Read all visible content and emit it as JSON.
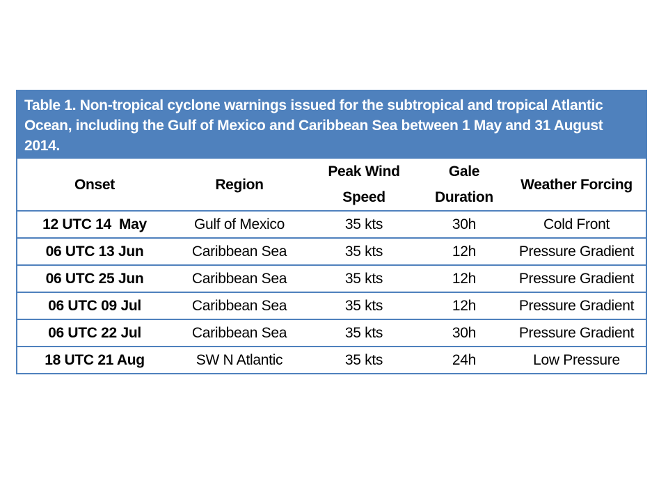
{
  "table": {
    "caption": "Table 1. Non-tropical cyclone warnings issued for the subtropical and tropical Atlantic Ocean, including the Gulf of Mexico and Caribbean Sea between 1 May and 31 August 2014.",
    "headers": {
      "onset": "Onset",
      "region": "Region",
      "peak_wind_line1": "Peak Wind",
      "peak_wind_line2": "Speed",
      "gale_line1": "Gale",
      "gale_line2": "Duration",
      "forcing": "Weather Forcing"
    },
    "rows": [
      {
        "onset": "12 UTC 14  May",
        "region": "Gulf of Mexico",
        "peak_wind": "35 kts",
        "gale_duration": "30h",
        "forcing": "Cold Front"
      },
      {
        "onset": "06 UTC 13 Jun",
        "region": "Caribbean Sea",
        "peak_wind": "35 kts",
        "gale_duration": "12h",
        "forcing": "Pressure Gradient"
      },
      {
        "onset": "06 UTC 25 Jun",
        "region": "Caribbean Sea",
        "peak_wind": "35 kts",
        "gale_duration": "12h",
        "forcing": "Pressure Gradient"
      },
      {
        "onset": "06 UTC 09 Jul",
        "region": "Caribbean Sea",
        "peak_wind": "35 kts",
        "gale_duration": "12h",
        "forcing": "Pressure Gradient"
      },
      {
        "onset": "06 UTC 22 Jul",
        "region": "Caribbean Sea",
        "peak_wind": "35 kts",
        "gale_duration": "30h",
        "forcing": "Pressure Gradient"
      },
      {
        "onset": "18 UTC 21 Aug",
        "region": "SW N Atlantic",
        "peak_wind": "35 kts",
        "gale_duration": "24h",
        "forcing": "Low Pressure"
      }
    ]
  },
  "colors": {
    "header_blue": "#4f81bd",
    "caption_text": "#ffffff"
  }
}
